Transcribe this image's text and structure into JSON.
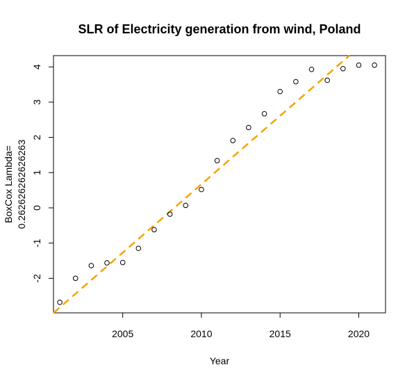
{
  "chart_data": {
    "type": "scatter",
    "title": "SLR of Electricity generation from wind, Poland",
    "xlabel": "Year",
    "ylabel_line1": "BoxCox Lambda=",
    "ylabel_line2": "0.262626262626263",
    "xlim": [
      2000.6,
      2021.7
    ],
    "ylim": [
      -2.98,
      4.32
    ],
    "xticks": [
      2005,
      2010,
      2015,
      2020
    ],
    "yticks": [
      -2,
      -1,
      0,
      1,
      2,
      3,
      4
    ],
    "grid": false,
    "legend": "none",
    "series": [
      {
        "kind": "points",
        "marker": "open-circle",
        "color": "#000000",
        "x": [
          2001,
          2002,
          2003,
          2004,
          2005,
          2006,
          2007,
          2008,
          2009,
          2010,
          2011,
          2012,
          2013,
          2014,
          2015,
          2016,
          2017,
          2018,
          2019,
          2020,
          2021
        ],
        "y": [
          -2.68,
          -2.0,
          -1.64,
          -1.56,
          -1.55,
          -1.15,
          -0.62,
          -0.18,
          0.07,
          0.52,
          1.34,
          1.91,
          2.28,
          2.67,
          3.3,
          3.58,
          3.93,
          3.62,
          3.95,
          4.05,
          4.05
        ]
      },
      {
        "kind": "regression-line",
        "style": "dashed",
        "color": "#F5A300",
        "x": [
          2000.6,
          2019.4
        ],
        "y": [
          -2.98,
          4.32
        ]
      }
    ]
  }
}
